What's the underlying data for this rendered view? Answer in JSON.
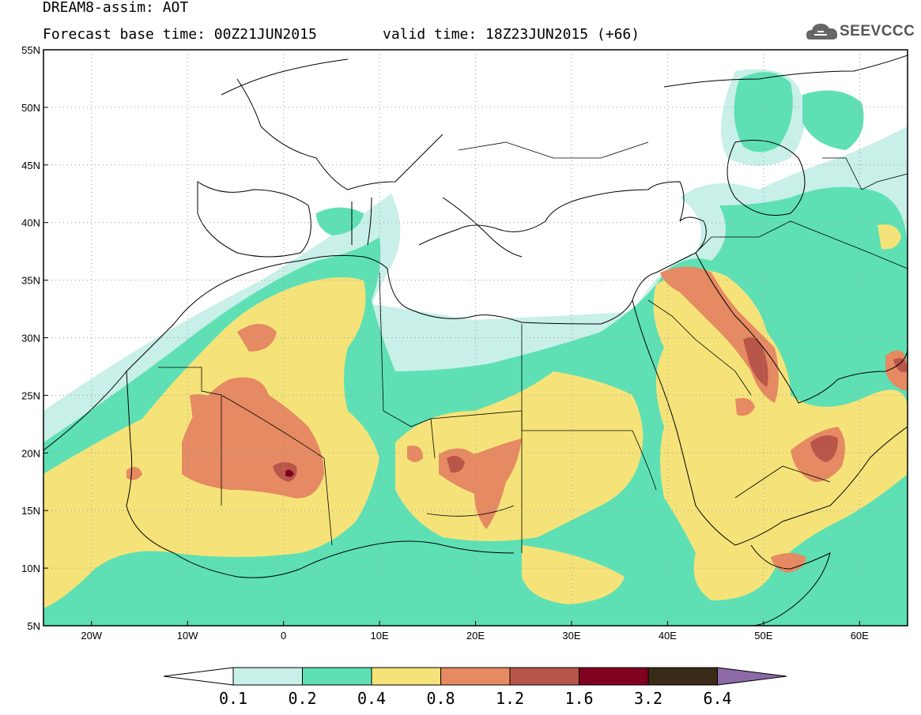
{
  "header": {
    "title": "DREAM8-assim: AOT",
    "forecast_base": "Forecast base time: 00Z21JUN2015",
    "valid_time": "valid time: 18Z23JUN2015 (+66)"
  },
  "logo": {
    "text": "SEEVCCC",
    "icon": "cloud-icon"
  },
  "map": {
    "lon_range": [
      -25,
      65
    ],
    "lat_range": [
      5,
      55
    ],
    "lon_ticks": [
      {
        "v": -20,
        "label": "20W"
      },
      {
        "v": -10,
        "label": "10W"
      },
      {
        "v": 0,
        "label": "0"
      },
      {
        "v": 10,
        "label": "10E"
      },
      {
        "v": 20,
        "label": "20E"
      },
      {
        "v": 30,
        "label": "30E"
      },
      {
        "v": 40,
        "label": "40E"
      },
      {
        "v": 50,
        "label": "50E"
      },
      {
        "v": 60,
        "label": "60E"
      }
    ],
    "lat_ticks": [
      {
        "v": 5,
        "label": "5N"
      },
      {
        "v": 10,
        "label": "10N"
      },
      {
        "v": 15,
        "label": "15N"
      },
      {
        "v": 20,
        "label": "20N"
      },
      {
        "v": 25,
        "label": "25N"
      },
      {
        "v": 30,
        "label": "30N"
      },
      {
        "v": 35,
        "label": "35N"
      },
      {
        "v": 40,
        "label": "40N"
      },
      {
        "v": 45,
        "label": "45N"
      },
      {
        "v": 50,
        "label": "50N"
      },
      {
        "v": 55,
        "label": "55N"
      }
    ],
    "grid": true,
    "variable": "AOT"
  },
  "colorbar": {
    "labels": [
      "0.1",
      "0.2",
      "0.4",
      "0.8",
      "1.2",
      "1.6",
      "3.2",
      "6.4"
    ],
    "colors": [
      "#ffffff",
      "#c8f0e8",
      "#5ee0b4",
      "#f5e37a",
      "#e58a62",
      "#b8564a",
      "#800020",
      "#3a2a18",
      "#8c6aa8"
    ]
  }
}
